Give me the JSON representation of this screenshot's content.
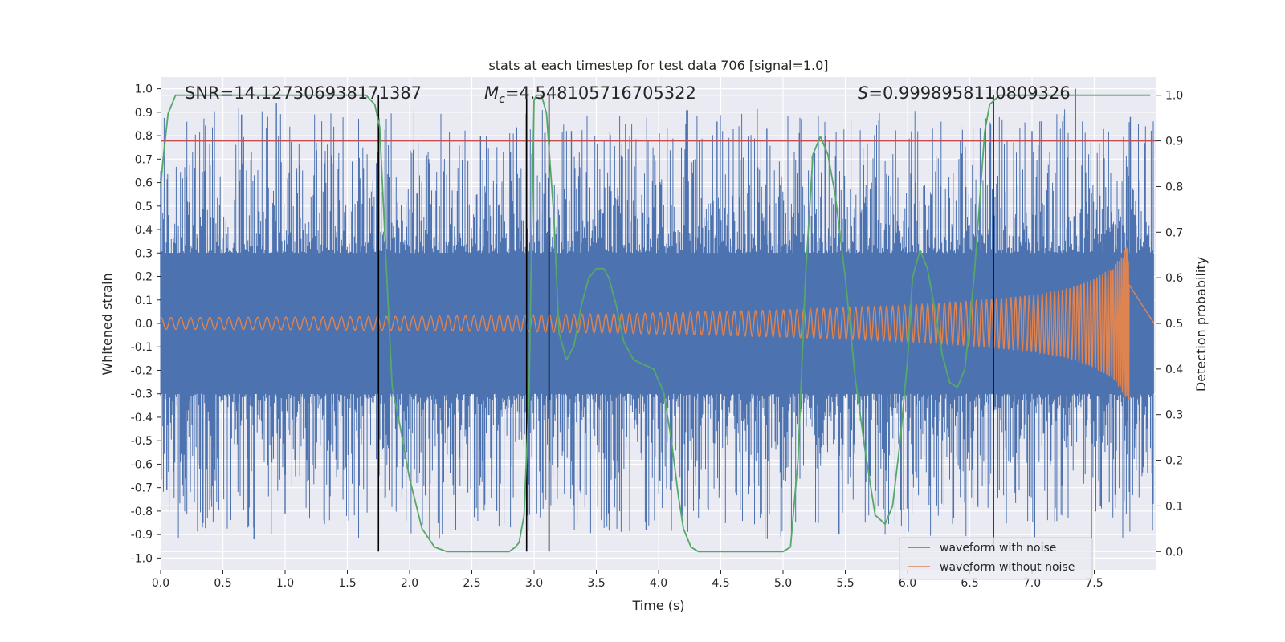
{
  "chart_data": {
    "type": "line",
    "title": "stats at each timestep for test data 706 [signal=1.0]",
    "xlabel": "Time (s)",
    "ylabel": "Whitened strain",
    "y2label": "Detection probability",
    "xlim": [
      0.0,
      8.0
    ],
    "ylim": [
      -1.05,
      1.05
    ],
    "y2lim": [
      -0.04,
      1.04
    ],
    "x_ticks": [
      "0.0",
      "0.5",
      "1.0",
      "1.5",
      "2.0",
      "2.5",
      "3.0",
      "3.5",
      "4.0",
      "4.5",
      "5.0",
      "5.5",
      "6.0",
      "6.5",
      "7.0",
      "7.5"
    ],
    "y_ticks": [
      "-1.0",
      "-0.9",
      "-0.8",
      "-0.7",
      "-0.6",
      "-0.5",
      "-0.4",
      "-0.3",
      "-0.2",
      "-0.1",
      "0.0",
      "0.1",
      "0.2",
      "0.3",
      "0.4",
      "0.5",
      "0.6",
      "0.7",
      "0.8",
      "0.9",
      "1.0"
    ],
    "y2_ticks": [
      "0.0",
      "0.1",
      "0.2",
      "0.3",
      "0.4",
      "0.5",
      "0.6",
      "0.7",
      "0.8",
      "0.9",
      "1.0"
    ],
    "grid": true,
    "legend_position": "lower-right",
    "annotations": {
      "snr": "SNR=14.127306938171387",
      "mc_symbol": "M",
      "mc_sub": "c",
      "mc_value": "=4.548105716705322",
      "s_symbol": "S",
      "s_value": "=0.9998958110809326"
    },
    "threshold_y2": 0.9,
    "vertical_lines_x": [
      1.75,
      2.94,
      3.12,
      6.69
    ],
    "series": [
      {
        "name": "waveform with noise",
        "axis": "left",
        "color": "#4c72b0",
        "core_envelope": 0.3,
        "peak_samples": [
          {
            "x": 0.0,
            "y": 0.62
          },
          {
            "x": 0.05,
            "y": -0.71
          },
          {
            "x": 0.27,
            "y": -0.76
          },
          {
            "x": 0.65,
            "y": 0.89
          },
          {
            "x": 0.75,
            "y": -0.92
          },
          {
            "x": 0.93,
            "y": 0.94
          },
          {
            "x": 1.0,
            "y": -0.81
          },
          {
            "x": 1.25,
            "y": 0.77
          },
          {
            "x": 1.79,
            "y": -0.53
          },
          {
            "x": 2.57,
            "y": 0.8
          },
          {
            "x": 2.7,
            "y": -0.8
          },
          {
            "x": 3.3,
            "y": 0.82
          },
          {
            "x": 3.9,
            "y": -0.88
          },
          {
            "x": 4.47,
            "y": 0.86
          },
          {
            "x": 4.62,
            "y": -0.72
          },
          {
            "x": 4.87,
            "y": 0.83
          },
          {
            "x": 5.34,
            "y": 0.8
          },
          {
            "x": 5.45,
            "y": -0.9
          },
          {
            "x": 6.2,
            "y": 0.83
          },
          {
            "x": 6.37,
            "y": -0.83
          },
          {
            "x": 7.0,
            "y": 0.82
          },
          {
            "x": 7.35,
            "y": 1.0
          },
          {
            "x": 7.55,
            "y": -0.78
          },
          {
            "x": 7.79,
            "y": 0.88
          }
        ]
      },
      {
        "name": "waveform without noise",
        "axis": "left",
        "color": "#dd8452",
        "amplitude": [
          [
            0.0,
            0.025
          ],
          [
            1.0,
            0.027
          ],
          [
            2.0,
            0.03
          ],
          [
            3.0,
            0.036
          ],
          [
            4.0,
            0.045
          ],
          [
            5.0,
            0.058
          ],
          [
            6.0,
            0.078
          ],
          [
            6.5,
            0.095
          ],
          [
            7.0,
            0.12
          ],
          [
            7.3,
            0.15
          ],
          [
            7.5,
            0.19
          ],
          [
            7.65,
            0.24
          ],
          [
            7.72,
            0.29
          ],
          [
            7.76,
            0.33
          ],
          [
            7.78,
            0.33
          ]
        ],
        "merger_time": 7.78
      },
      {
        "name": "detection probability",
        "axis": "right",
        "color": "#55a868",
        "x": [
          0.0,
          0.02,
          0.06,
          0.12,
          0.2,
          0.5,
          1.0,
          1.5,
          1.65,
          1.72,
          1.76,
          1.8,
          1.86,
          1.92,
          2.0,
          2.1,
          2.2,
          2.3,
          2.5,
          2.7,
          2.8,
          2.85,
          2.88,
          2.92,
          2.96,
          2.98,
          3.0,
          3.02,
          3.06,
          3.1,
          3.16,
          3.2,
          3.26,
          3.32,
          3.38,
          3.44,
          3.5,
          3.56,
          3.6,
          3.66,
          3.72,
          3.8,
          3.88,
          3.96,
          4.04,
          4.1,
          4.16,
          4.2,
          4.26,
          4.32,
          4.38,
          4.44,
          4.6,
          4.8,
          5.0,
          5.06,
          5.12,
          5.18,
          5.24,
          5.3,
          5.36,
          5.42,
          5.5,
          5.58,
          5.66,
          5.74,
          5.82,
          5.88,
          5.94,
          6.0,
          6.04,
          6.1,
          6.16,
          6.22,
          6.28,
          6.34,
          6.4,
          6.46,
          6.5,
          6.54,
          6.58,
          6.62,
          6.66,
          6.7,
          6.74,
          6.78,
          6.84,
          6.92,
          7.0,
          7.5,
          7.95
        ],
        "y": [
          0.8,
          0.86,
          0.96,
          1.0,
          1.0,
          1.0,
          1.0,
          1.0,
          1.0,
          0.98,
          0.93,
          0.7,
          0.36,
          0.28,
          0.16,
          0.05,
          0.01,
          0.0,
          0.0,
          0.0,
          0.0,
          0.01,
          0.02,
          0.08,
          0.35,
          0.68,
          0.99,
          1.0,
          1.0,
          0.96,
          0.73,
          0.48,
          0.42,
          0.45,
          0.54,
          0.6,
          0.62,
          0.62,
          0.6,
          0.54,
          0.46,
          0.42,
          0.41,
          0.4,
          0.35,
          0.25,
          0.12,
          0.05,
          0.01,
          0.0,
          0.0,
          0.0,
          0.0,
          0.0,
          0.0,
          0.01,
          0.2,
          0.6,
          0.87,
          0.91,
          0.87,
          0.78,
          0.6,
          0.38,
          0.22,
          0.08,
          0.06,
          0.1,
          0.24,
          0.42,
          0.6,
          0.66,
          0.62,
          0.53,
          0.43,
          0.37,
          0.36,
          0.4,
          0.5,
          0.62,
          0.77,
          0.92,
          0.98,
          0.99,
          1.0,
          1.0,
          1.0,
          1.0,
          1.0,
          1.0,
          1.0
        ]
      }
    ]
  }
}
